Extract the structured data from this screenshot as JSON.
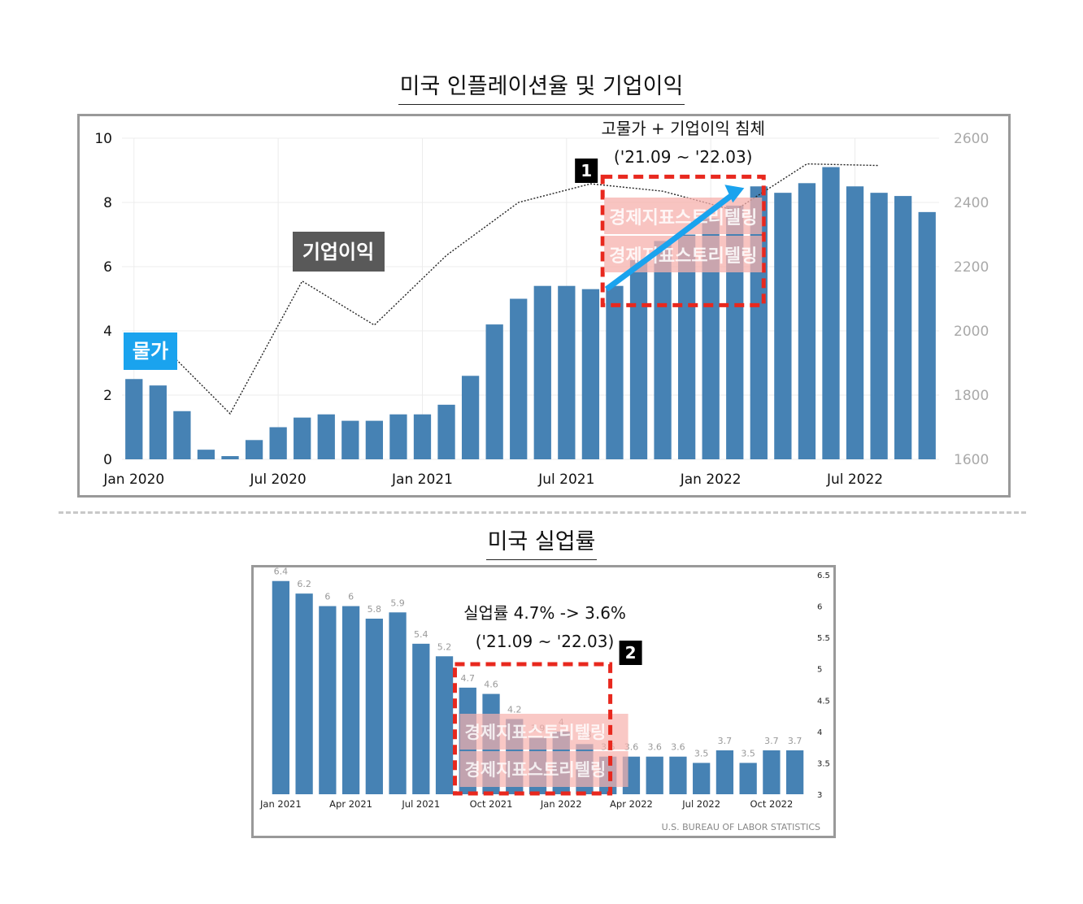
{
  "title1": "미국 인플레이션율 및 기업이익",
  "title2": "미국 실업률",
  "chart_data": [
    {
      "type": "bar",
      "title": "미국 인플레이션율 및 기업이익",
      "categories": [
        "Jan 2020",
        "Feb 2020",
        "Mar 2020",
        "Apr 2020",
        "May 2020",
        "Jun 2020",
        "Jul 2020",
        "Aug 2020",
        "Sep 2020",
        "Oct 2020",
        "Nov 2020",
        "Dec 2020",
        "Jan 2021",
        "Feb 2021",
        "Mar 2021",
        "Apr 2021",
        "May 2021",
        "Jun 2021",
        "Jul 2021",
        "Aug 2021",
        "Sep 2021",
        "Oct 2021",
        "Nov 2021",
        "Dec 2021",
        "Jan 2022",
        "Feb 2022",
        "Mar 2022",
        "Apr 2022",
        "May 2022",
        "Jun 2022",
        "Jul 2022",
        "Aug 2022",
        "Sep 2022",
        "Oct 2022"
      ],
      "x_tick_labels": [
        "Jan 2020",
        "Jul 2020",
        "Jan 2021",
        "Jul 2021",
        "Jan 2022",
        "Jul 2022"
      ],
      "series": [
        {
          "name": "물가",
          "axis": "left",
          "values": [
            2.5,
            2.3,
            1.5,
            0.3,
            0.1,
            0.6,
            1.0,
            1.3,
            1.4,
            1.2,
            1.2,
            1.4,
            1.4,
            1.7,
            2.6,
            4.2,
            5.0,
            5.4,
            5.4,
            5.3,
            5.4,
            6.2,
            6.8,
            7.0,
            7.5,
            7.9,
            8.5,
            8.3,
            8.6,
            9.1,
            8.5,
            8.3,
            8.2,
            7.7
          ]
        },
        {
          "name": "기업이익",
          "axis": "right",
          "type": "line",
          "points": [
            [
              "Feb 2020",
              1968
            ],
            [
              "May 2020",
              1742
            ],
            [
              "Aug 2020",
              2155
            ],
            [
              "Nov 2020",
              2018
            ],
            [
              "Feb 2021",
              2235
            ],
            [
              "May 2021",
              2400
            ],
            [
              "Aug 2021",
              2458
            ],
            [
              "Nov 2021",
              2435
            ],
            [
              "Feb 2022",
              2375
            ],
            [
              "May 2022",
              2520
            ],
            [
              "Aug 2022",
              2515
            ]
          ]
        }
      ],
      "ylim_left": [
        0,
        10
      ],
      "yticks_left": [
        "0",
        "2",
        "4",
        "6",
        "8",
        "10"
      ],
      "ylim_right": [
        1600,
        2600
      ],
      "yticks_right": [
        "1600",
        "1800",
        "2000",
        "2200",
        "2400",
        "2600"
      ],
      "grid": true,
      "annotations": {
        "label_price": "물가",
        "label_profit": "기업이익",
        "note_line1": "고물가 + 기업이익 침체",
        "note_line2": "('21.09 ~ '22.03)",
        "badge": "1",
        "watermark": "경제지표스토리텔링",
        "highlight_start": "Sep 2021",
        "highlight_end": "Mar 2022"
      },
      "colors": {
        "bar": "#4682b4",
        "price_label": "#1aa3ee",
        "profit_label": "#595959",
        "highlight": "#e8281e",
        "arrow": "#1aa3ee"
      }
    },
    {
      "type": "bar",
      "title": "미국 실업률",
      "categories": [
        "Jan 2021",
        "Feb 2021",
        "Mar 2021",
        "Apr 2021",
        "May 2021",
        "Jun 2021",
        "Jul 2021",
        "Aug 2021",
        "Sep 2021",
        "Oct 2021",
        "Nov 2021",
        "Dec 2021",
        "Jan 2022",
        "Feb 2022",
        "Mar 2022",
        "Apr 2022",
        "May 2022",
        "Jun 2022",
        "Jul 2022",
        "Aug 2022",
        "Sep 2022",
        "Oct 2022",
        "Nov 2022"
      ],
      "values": [
        6.4,
        6.2,
        6.0,
        6.0,
        5.8,
        5.9,
        5.4,
        5.2,
        4.7,
        4.6,
        4.2,
        3.9,
        4.0,
        3.8,
        3.6,
        3.6,
        3.6,
        3.6,
        3.5,
        3.7,
        3.5,
        3.7,
        3.7
      ],
      "data_labels": [
        "6.4",
        "6.2",
        "6",
        "6",
        "5.8",
        "5.9",
        "5.4",
        "5.2",
        "4.7",
        "4.6",
        "4.2",
        "3.9",
        "4",
        "3.8",
        "3.6",
        "3.6",
        "3.6",
        "3.6",
        "3.5",
        "3.7",
        "3.5",
        "3.7",
        "3.7"
      ],
      "x_tick_labels": [
        "Jan 2021",
        "Apr 2021",
        "Jul 2021",
        "Oct 2021",
        "Jan 2022",
        "Apr 2022",
        "Jul 2022",
        "Oct 2022"
      ],
      "ylim": [
        3,
        6.5
      ],
      "yticks": [
        "3",
        "3.5",
        "4",
        "4.5",
        "5",
        "5.5",
        "6",
        "6.5"
      ],
      "source": "U.S. BUREAU OF LABOR STATISTICS",
      "annotations": {
        "note_line1": "실업률 4.7% -> 3.6%",
        "note_line2": "('21.09 ~ '22.03)",
        "badge": "2",
        "watermark": "경제지표스토리텔링",
        "highlight_start": "Sep 2021",
        "highlight_end": "Mar 2022"
      },
      "colors": {
        "bar": "#4682b4",
        "highlight": "#e8281e"
      }
    }
  ]
}
